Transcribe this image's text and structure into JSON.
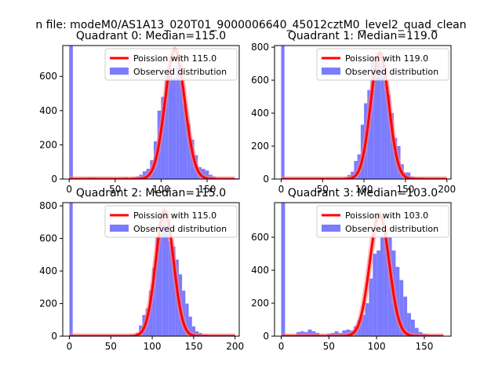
{
  "figure": {
    "suptitle": "n file: modeM0/AS1A13_020T01_9000006640_45012cztM0_level2_quad_clean",
    "colors": {
      "hist": "#7b7bff",
      "fit": "#ff0000",
      "fit_halo": "#ff8080",
      "axes": "#000000"
    }
  },
  "chart_data": [
    {
      "type": "bar",
      "title": "Quadrant 0: Median=115.0",
      "legend": {
        "placement": "top-right",
        "entries": [
          "Poission with 115.0",
          "Observed distribution"
        ]
      },
      "xlim": [
        -7,
        185
      ],
      "ylim": [
        0,
        780
      ],
      "xticks": [
        0,
        50,
        100,
        150
      ],
      "yticks": [
        0,
        200,
        400,
        600
      ],
      "hist_bin_width": 4,
      "hist_x": [
        0,
        8,
        20,
        24,
        28,
        44,
        48,
        52,
        56,
        60,
        64,
        68,
        72,
        76,
        80,
        84,
        88,
        92,
        96,
        100,
        104,
        108,
        112,
        116,
        120,
        124,
        128,
        132,
        136,
        140,
        144,
        148,
        152,
        156,
        160,
        164,
        168,
        172,
        176,
        180
      ],
      "hist_y": [
        780,
        5,
        10,
        10,
        5,
        5,
        5,
        5,
        5,
        10,
        5,
        10,
        15,
        25,
        45,
        60,
        110,
        220,
        400,
        480,
        600,
        620,
        590,
        660,
        600,
        440,
        320,
        230,
        140,
        70,
        60,
        50,
        25,
        15,
        5,
        5,
        5,
        5,
        5,
        5
      ],
      "fit_name": "Poission with 115.0",
      "fit_mean": 115.0,
      "fit_peak": 755,
      "fit_range": [
        0,
        180
      ]
    },
    {
      "type": "bar",
      "title": "Quadrant 1: Median=119.0",
      "legend": {
        "placement": "top-right",
        "entries": [
          "Poission with 119.0",
          "Observed distribution"
        ]
      },
      "xlim": [
        -8,
        205
      ],
      "ylim": [
        0,
        810
      ],
      "xticks": [
        0,
        50,
        100,
        150,
        200
      ],
      "yticks": [
        0,
        200,
        400,
        600,
        800
      ],
      "hist_bin_width": 4,
      "hist_x": [
        0,
        28,
        64,
        72,
        76,
        80,
        84,
        88,
        92,
        96,
        100,
        104,
        108,
        112,
        116,
        120,
        124,
        128,
        132,
        136,
        140,
        144,
        148,
        152,
        156,
        160,
        164,
        168,
        172,
        176,
        180,
        184,
        188,
        192
      ],
      "hist_y": [
        810,
        5,
        5,
        5,
        10,
        25,
        45,
        110,
        150,
        330,
        460,
        540,
        720,
        740,
        770,
        720,
        650,
        510,
        400,
        250,
        200,
        90,
        40,
        40,
        15,
        10,
        10,
        10,
        5,
        5,
        5,
        5,
        5,
        5
      ],
      "fit_name": "Poission with 119.0",
      "fit_mean": 119.0,
      "fit_peak": 765,
      "fit_range": [
        0,
        200
      ]
    },
    {
      "type": "bar",
      "title": "Quadrant 2: Median=115.0",
      "legend": {
        "placement": "top-right",
        "entries": [
          "Poission with 115.0",
          "Observed distribution"
        ]
      },
      "xlim": [
        -8,
        205
      ],
      "ylim": [
        0,
        820
      ],
      "xticks": [
        0,
        50,
        100,
        150,
        200
      ],
      "yticks": [
        0,
        200,
        400,
        600,
        800
      ],
      "hist_bin_width": 4,
      "hist_x": [
        0,
        76,
        80,
        84,
        88,
        92,
        96,
        100,
        104,
        108,
        112,
        116,
        120,
        124,
        128,
        132,
        136,
        140,
        144,
        148,
        152,
        156,
        160,
        164,
        168,
        172,
        176,
        180,
        184,
        188,
        192
      ],
      "hist_y": [
        820,
        10,
        20,
        65,
        130,
        170,
        280,
        420,
        610,
        630,
        790,
        680,
        580,
        550,
        470,
        380,
        280,
        200,
        120,
        60,
        30,
        20,
        10,
        10,
        5,
        5,
        5,
        5,
        5,
        5,
        5
      ],
      "fit_name": "Poission with 115.0",
      "fit_mean": 115.0,
      "fit_peak": 770,
      "fit_range": [
        0,
        200
      ]
    },
    {
      "type": "bar",
      "title": "Quadrant 3: Median=103.0",
      "legend": {
        "placement": "top-right",
        "entries": [
          "Poission with 103.0",
          "Observed distribution"
        ]
      },
      "xlim": [
        -7,
        178
      ],
      "ylim": [
        0,
        810
      ],
      "xticks": [
        0,
        50,
        100,
        150
      ],
      "yticks": [
        0,
        200,
        400,
        600
      ],
      "hist_bin_width": 4,
      "hist_x": [
        0,
        16,
        20,
        24,
        28,
        32,
        36,
        48,
        52,
        56,
        60,
        64,
        68,
        72,
        76,
        80,
        84,
        88,
        92,
        96,
        100,
        104,
        108,
        112,
        116,
        120,
        124,
        128,
        132,
        136,
        140,
        144,
        148,
        152,
        156,
        160,
        164
      ],
      "hist_y": [
        810,
        25,
        30,
        25,
        40,
        30,
        20,
        15,
        20,
        30,
        20,
        35,
        40,
        35,
        60,
        95,
        130,
        200,
        350,
        500,
        520,
        600,
        640,
        600,
        520,
        420,
        340,
        240,
        140,
        100,
        50,
        25,
        15,
        10,
        5,
        5,
        5
      ],
      "fit_name": "Poission with 103.0",
      "fit_mean": 103.0,
      "fit_peak": 740,
      "fit_range": [
        0,
        170
      ]
    }
  ]
}
